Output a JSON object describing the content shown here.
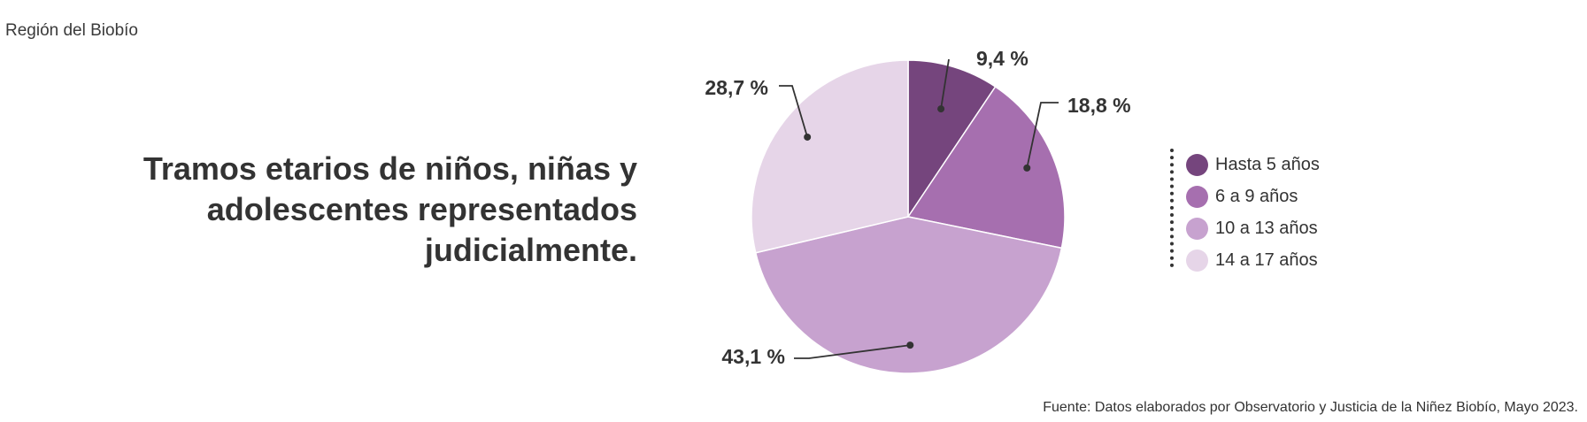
{
  "header": {
    "region": "Región del Biobío"
  },
  "title_lines": [
    "Tramos etarios de niños, niñas y",
    "adolescentes representados",
    "judicialmente."
  ],
  "source": "Fuente: Datos elaborados por Observatorio y Justicia de la Niñez Biobío, Mayo 2023.",
  "chart_data": {
    "type": "pie",
    "title": "Tramos etarios de niños, niñas y adolescentes representados judicialmente.",
    "legend_position": "right",
    "slices": [
      {
        "label": "Hasta 5 años",
        "value": 9.4,
        "value_label": "9,4 %",
        "color": "#75457d"
      },
      {
        "label": "6 a 9 años",
        "value": 18.8,
        "value_label": "18,8 %",
        "color": "#a66faf"
      },
      {
        "label": "10 a 13 años",
        "value": 43.1,
        "value_label": "43,1 %",
        "color": "#c7a2cf"
      },
      {
        "label": "14 a 17 años",
        "value": 28.7,
        "value_label": "28,7 %",
        "color": "#e6d5e8"
      }
    ]
  }
}
